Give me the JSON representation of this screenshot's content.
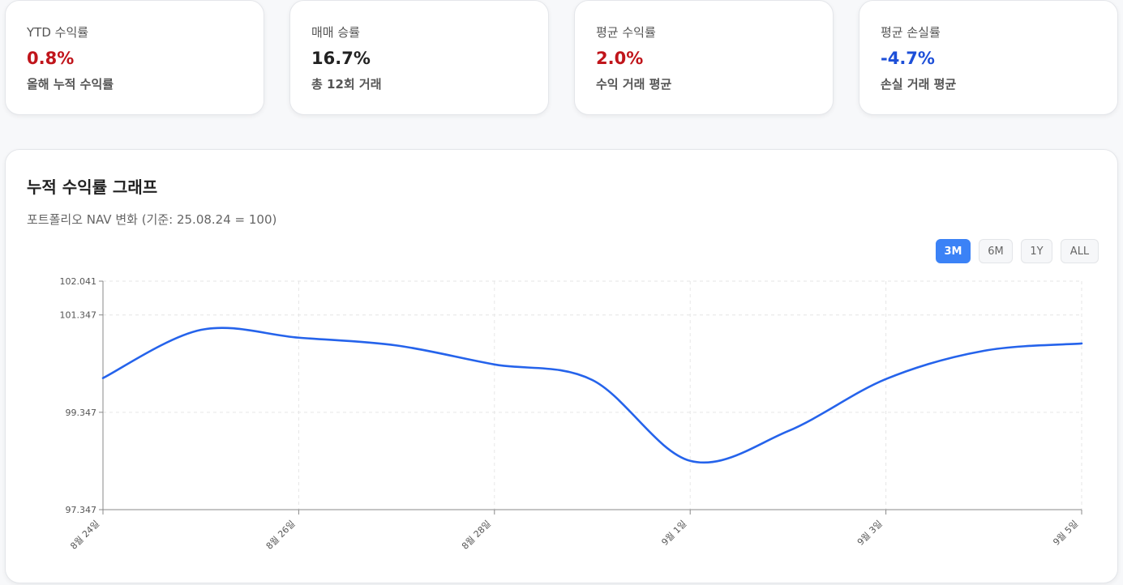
{
  "stats": [
    {
      "title": "YTD 수익률",
      "value": "0.8%",
      "sub": "올해 누적 수익률",
      "color": "#c0151b"
    },
    {
      "title": "매매 승률",
      "value": "16.7%",
      "sub": "총 12회 거래",
      "color": "#222222"
    },
    {
      "title": "평균 수익률",
      "value": "2.0%",
      "sub": "수익 거래 평균",
      "color": "#c0151b"
    },
    {
      "title": "평균 손실률",
      "value": "-4.7%",
      "sub": "손실 거래 평균",
      "color": "#1d4fd8"
    }
  ],
  "chart": {
    "title": "누적 수익률 그래프",
    "subtitle": "포트폴리오 NAV 변화 (기준: 25.08.24 = 100)",
    "ranges": [
      "3M",
      "6M",
      "1Y",
      "ALL"
    ],
    "active_range": "3M"
  },
  "chart_data": {
    "type": "line",
    "line_color": "#2563eb",
    "grid": true,
    "x_ticks": [
      "8월 24일",
      "8월 26일",
      "8월 28일",
      "9월 1일",
      "9월 3일",
      "9월 5일"
    ],
    "y_ticks": [
      97.347,
      99.347,
      101.347,
      102.041
    ],
    "ylim": [
      97.347,
      102.041
    ],
    "series": [
      {
        "x": [
          "8월 24일",
          "8월 25일",
          "8월 26일",
          "8월 27일",
          "8월 28일",
          "8월 29일",
          "9월 1일",
          "9월 2일",
          "9월 3일",
          "9月 4일",
          "9월 5일"
        ],
        "values": [
          100.05,
          101.04,
          100.88,
          100.72,
          100.33,
          100.01,
          98.35,
          98.96,
          100.03,
          100.61,
          100.76
        ]
      }
    ]
  }
}
